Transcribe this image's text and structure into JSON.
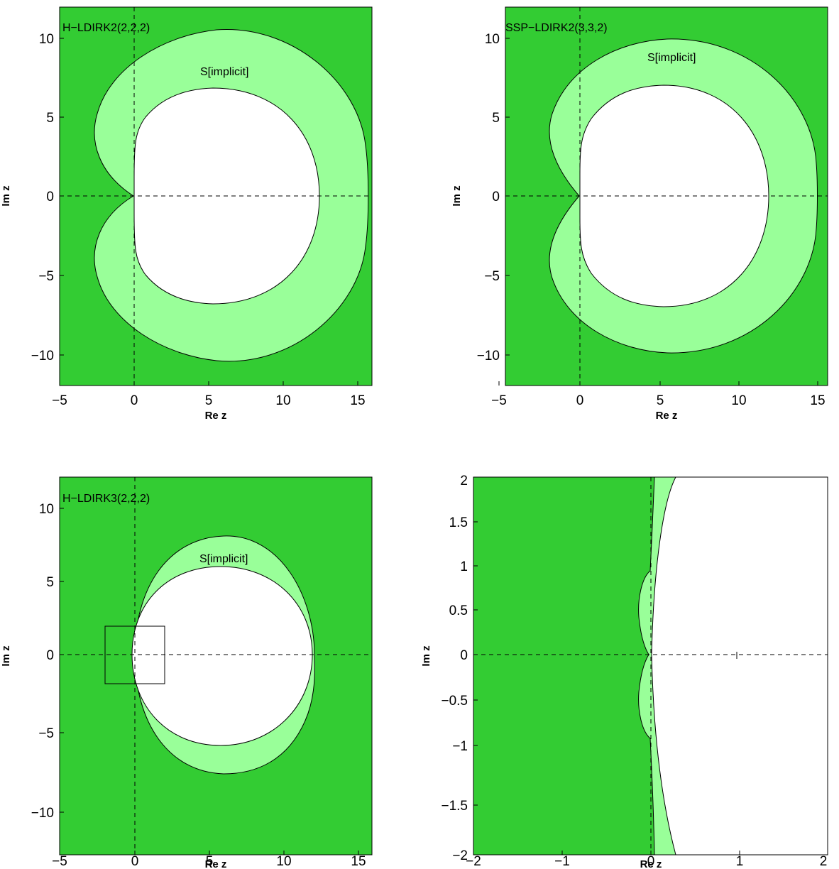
{
  "colors": {
    "dark_green": "#33cc33",
    "light_green": "#99ff99",
    "white": "#ffffff"
  },
  "chart_data": [
    {
      "type": "area",
      "title": "H−LDIRK2(2,2,2)",
      "xlabel": "Re z",
      "ylabel": "Im z",
      "xlim": [
        -5,
        16
      ],
      "ylim": [
        -12,
        12
      ],
      "xticks": [
        -5,
        0,
        5,
        10,
        15
      ],
      "yticks": [
        -10,
        -5,
        0,
        5,
        10
      ],
      "xtick_labels": [
        "−5",
        "0",
        "5",
        "10",
        "15"
      ],
      "ytick_labels": [
        "−10",
        "−5",
        "0",
        "5",
        "10"
      ],
      "region_label": "S[implicit]",
      "region_label_pos": [
        5.3,
        7.8
      ],
      "outer_boundary": {
        "center": [
          5.3,
          0
        ],
        "rx": 9.5,
        "ry": 10.1,
        "cusp": [
          0,
          0
        ],
        "left_extent": -2.6
      },
      "inner_boundary": {
        "center": [
          5.0,
          0
        ],
        "rx": 6.7,
        "ry": 6.8,
        "left_x": 0
      },
      "grid": false,
      "axes_dashed": true
    },
    {
      "type": "area",
      "title": "SSP−LDIRK2(3,3,2)",
      "xlabel": "Re z",
      "ylabel": "Im z",
      "xlim": [
        -5,
        16
      ],
      "ylim": [
        -12,
        12
      ],
      "xticks": [
        -5,
        0,
        5,
        10,
        15
      ],
      "yticks": [
        -10,
        -5,
        0,
        5,
        10
      ],
      "xtick_labels": [
        "−5",
        "0",
        "5",
        "10",
        "15"
      ],
      "ytick_labels": [
        "−10",
        "−5",
        "0",
        "5",
        "10"
      ],
      "region_label": "S[implicit]",
      "region_label_pos": [
        5.6,
        8.5
      ],
      "outer_boundary": {
        "center": [
          5.6,
          0
        ],
        "rx": 9.6,
        "ry": 10.0,
        "cusp": [
          0,
          0
        ],
        "left_extent": -1.9
      },
      "inner_boundary": {
        "center": [
          5.5,
          0
        ],
        "rx": 6.6,
        "ry": 6.9,
        "left_x": 0
      },
      "grid": false,
      "axes_dashed": true
    },
    {
      "type": "area",
      "title": "H−LDIRK3(2,2,2)",
      "xlabel": "Re z",
      "ylabel": "Im z",
      "xlim": [
        -5,
        16
      ],
      "ylim": [
        -12,
        12
      ],
      "xticks": [
        -5,
        0,
        5,
        10,
        15
      ],
      "yticks": [
        -10,
        -5,
        0,
        5,
        10
      ],
      "xtick_labels": [
        "−5",
        "0",
        "5",
        "10",
        "15"
      ],
      "ytick_labels": [
        "−10",
        "−5",
        "0",
        "5",
        "10"
      ],
      "region_label": "S[implicit]",
      "region_label_pos": [
        6.0,
        5.8
      ],
      "outer_boundary": {
        "center": [
          6.0,
          0
        ],
        "rx": 6.2,
        "ry": 8.0
      },
      "inner_boundary": {
        "center": [
          6.0,
          0
        ],
        "rx": 6.0,
        "ry": 6.0
      },
      "zoom_box": {
        "x": [
          -2,
          2
        ],
        "y": [
          -2,
          2
        ]
      },
      "grid": false,
      "axes_dashed": true
    },
    {
      "type": "area",
      "title": "",
      "xlabel": "Re z",
      "ylabel": "Im z",
      "xlim": [
        -2,
        2
      ],
      "ylim": [
        -2,
        2
      ],
      "xticks": [
        -2,
        -1,
        0,
        1,
        2
      ],
      "yticks": [
        -2,
        -1.5,
        -1,
        -0.5,
        0,
        0.5,
        1,
        1.5,
        2
      ],
      "xtick_labels": [
        "−2",
        "−1",
        "0",
        "1",
        "2"
      ],
      "ytick_labels": [
        "−2",
        "−1.5",
        "−1",
        "−0.5",
        "0",
        "0.5",
        "1",
        "1.5",
        "2"
      ],
      "outer_boundary_x_at_top": 0.04,
      "inner_boundary_x_at_top": 0.27,
      "lobes": [
        {
          "y_center": 0.45,
          "half_height": 0.45,
          "left_x": -0.14
        },
        {
          "y_center": -0.45,
          "half_height": 0.45,
          "left_x": -0.14
        }
      ],
      "grid": false,
      "axes_dashed": true
    }
  ]
}
